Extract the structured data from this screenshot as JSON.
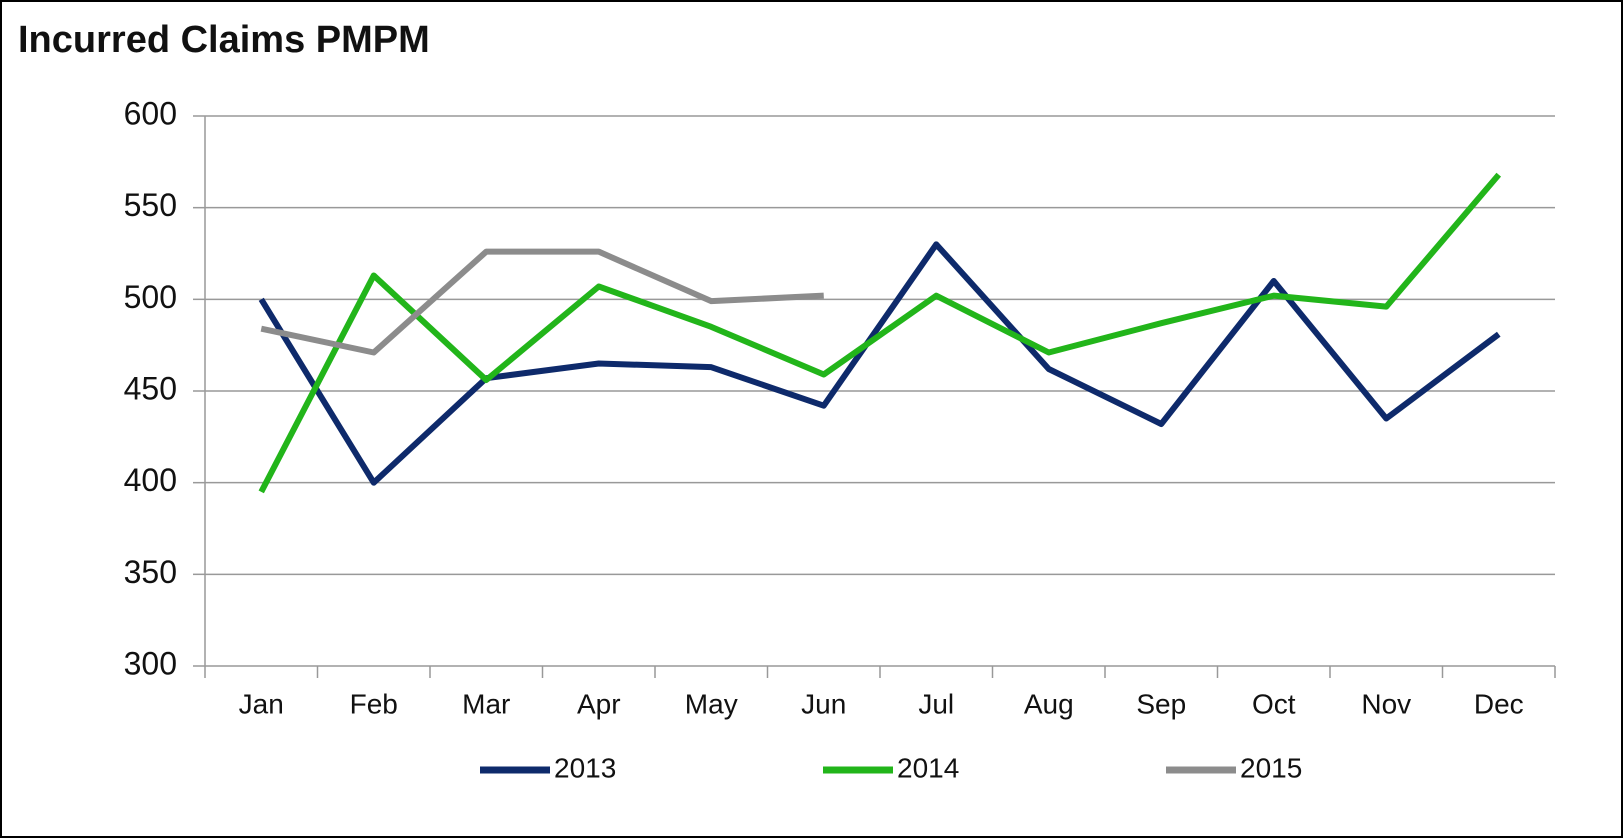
{
  "chart_data": {
    "type": "line",
    "title": "Incurred Claims PMPM",
    "categories": [
      "Jan",
      "Feb",
      "Mar",
      "Apr",
      "May",
      "Jun",
      "Jul",
      "Aug",
      "Sep",
      "Oct",
      "Nov",
      "Dec"
    ],
    "series": [
      {
        "name": "2013",
        "color": "#0e2a6b",
        "values": [
          500,
          400,
          457,
          465,
          463,
          442,
          530,
          462,
          432,
          510,
          435,
          481
        ]
      },
      {
        "name": "2014",
        "color": "#22b51a",
        "values": [
          395,
          513,
          456,
          507,
          485,
          459,
          502,
          471,
          487,
          502,
          496,
          568
        ]
      },
      {
        "name": "2015",
        "color": "#8c8c8c",
        "values": [
          484,
          471,
          526,
          526,
          499,
          502,
          null,
          null,
          null,
          null,
          null,
          null
        ]
      }
    ],
    "ylim": [
      300,
      600
    ],
    "yticks": [
      300,
      350,
      400,
      450,
      500,
      550,
      600
    ],
    "grid": true,
    "legend": "bottom"
  }
}
